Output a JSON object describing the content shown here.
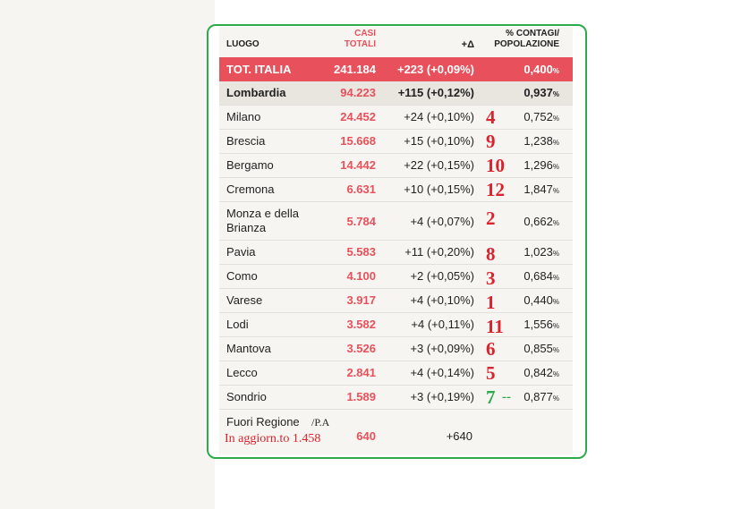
{
  "header": {
    "luogo": "LUOGO",
    "casi_line1": "CASI",
    "casi_line2": "TOTALI",
    "delta": "+Δ",
    "pct_line1": "% CONTAGI/",
    "pct_line2": "POPOLAZIONE"
  },
  "total": {
    "name": "TOT. ITALIA",
    "cases": "241.184",
    "delta": "+223 (+0,09%)",
    "pct": "0,400",
    "pct_sym": "%"
  },
  "region": {
    "name": "Lombardia",
    "cases": "94.223",
    "delta": "+115 (+0,12%)",
    "pct": "0,937",
    "pct_sym": "%"
  },
  "provinces": [
    {
      "name": "Milano",
      "cases": "24.452",
      "delta": "+24 (+0,10%)",
      "rank": "4",
      "pct": "0,752",
      "pct_sym": "%"
    },
    {
      "name": "Brescia",
      "cases": "15.668",
      "delta": "+15 (+0,10%)",
      "rank": "9",
      "pct": "1,238",
      "pct_sym": "%"
    },
    {
      "name": "Bergamo",
      "cases": "14.442",
      "delta": "+22 (+0,15%)",
      "rank": "10",
      "pct": "1,296",
      "pct_sym": "%"
    },
    {
      "name": "Cremona",
      "cases": "6.631",
      "delta": "+10 (+0,15%)",
      "rank": "12",
      "pct": "1,847",
      "pct_sym": "%"
    },
    {
      "name_line1": "Monza e della",
      "name_line2": "Brianza",
      "cases": "5.784",
      "delta": "+4 (+0,07%)",
      "rank": "2",
      "pct": "0,662",
      "pct_sym": "%"
    },
    {
      "name": "Pavia",
      "cases": "5.583",
      "delta": "+11 (+0,20%)",
      "rank": "8",
      "pct": "1,023",
      "pct_sym": "%"
    },
    {
      "name": "Como",
      "cases": "4.100",
      "delta": "+2 (+0,05%)",
      "rank": "3",
      "pct": "0,684",
      "pct_sym": "%"
    },
    {
      "name": "Varese",
      "cases": "3.917",
      "delta": "+4 (+0,10%)",
      "rank": "1",
      "pct": "0,440",
      "pct_sym": "%"
    },
    {
      "name": "Lodi",
      "cases": "3.582",
      "delta": "+4 (+0,11%)",
      "rank": "11",
      "pct": "1,556",
      "pct_sym": "%"
    },
    {
      "name": "Mantova",
      "cases": "3.526",
      "delta": "+3 (+0,09%)",
      "rank": "6",
      "pct": "0,855",
      "pct_sym": "%"
    },
    {
      "name": "Lecco",
      "cases": "2.841",
      "delta": "+4 (+0,14%)",
      "rank": "5",
      "pct": "0,842",
      "pct_sym": "%"
    },
    {
      "name": "Sondrio",
      "cases": "1.589",
      "delta": "+3 (+0,19%)",
      "rank": "7",
      "rank_dash": "--",
      "pct": "0,877",
      "pct_sym": "%"
    }
  ],
  "fuori": {
    "label": "Fuori Regione",
    "suffix": "/P.A",
    "note": "In aggiorn.to 1.458",
    "cases": "640",
    "delta": "+640"
  },
  "colors": {
    "accent_red": "#e8505b",
    "annotation_red": "#d9232d",
    "annotation_green": "#2eaa4a",
    "frame_green": "#2eaa4a"
  }
}
